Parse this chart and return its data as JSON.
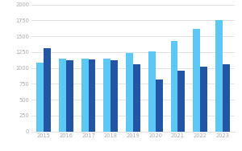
{
  "years": [
    "2015",
    "2016",
    "2017",
    "2018",
    "2019",
    "2020",
    "2021",
    "2022",
    "2023"
  ],
  "light_blue_values": [
    1080,
    1150,
    1150,
    1150,
    1230,
    1260,
    1420,
    1620,
    1750
  ],
  "dark_blue_values": [
    1310,
    1120,
    1130,
    1120,
    1060,
    820,
    960,
    1020,
    1060
  ],
  "light_blue_color": "#5BC8F5",
  "dark_blue_color": "#2255A4",
  "ylim": [
    0,
    2000
  ],
  "yticks": [
    0,
    250,
    500,
    750,
    1000,
    1250,
    1500,
    1750,
    2000
  ],
  "background_color": "#ffffff",
  "grid_color": "#d8d8d8",
  "bar_width": 0.32,
  "tick_fontsize": 4.8,
  "tick_color": "#aaaaaa"
}
